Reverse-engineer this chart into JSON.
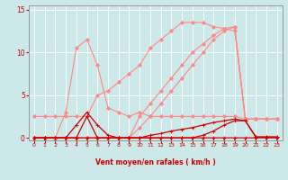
{
  "background_color": "#cce8e8",
  "grid_color": "#ffffff",
  "x_values": [
    0,
    1,
    2,
    3,
    4,
    5,
    6,
    7,
    8,
    9,
    10,
    11,
    12,
    13,
    14,
    15,
    16,
    17,
    18,
    19,
    20,
    21,
    22,
    23
  ],
  "series": [
    {
      "name": "pink_spike",
      "color": "#ff8888",
      "lw": 0.8,
      "marker": "D",
      "markersize": 2.0,
      "y": [
        0,
        0,
        0,
        3.0,
        10.5,
        11.5,
        8.5,
        3.5,
        3.0,
        2.5,
        3.0,
        2.5,
        2.5,
        2.5,
        2.5,
        2.5,
        2.5,
        2.5,
        2.5,
        2.5,
        2.2,
        2.2,
        2.2,
        2.2
      ]
    },
    {
      "name": "pink_main_curve",
      "color": "#ff8888",
      "lw": 0.8,
      "marker": "D",
      "markersize": 2.0,
      "y": [
        2.5,
        2.5,
        2.5,
        2.5,
        2.5,
        2.5,
        5.0,
        5.5,
        6.5,
        7.5,
        8.5,
        10.5,
        11.5,
        12.5,
        13.5,
        13.5,
        13.5,
        13.0,
        12.8,
        12.5,
        2.2,
        2.2,
        2.2,
        2.2
      ]
    },
    {
      "name": "pink_diagonal1",
      "color": "#ff8888",
      "lw": 0.8,
      "marker": "D",
      "markersize": 2.0,
      "y": [
        0,
        0,
        0,
        0,
        0,
        0,
        0,
        0,
        0,
        0,
        2.5,
        4.0,
        5.5,
        7.0,
        8.5,
        10.0,
        11.0,
        12.0,
        12.8,
        13.0,
        2.2,
        2.2,
        2.2,
        2.2
      ]
    },
    {
      "name": "pink_diagonal2",
      "color": "#ff8888",
      "lw": 0.8,
      "marker": "D",
      "markersize": 2.0,
      "y": [
        0,
        0,
        0,
        0,
        0,
        0,
        0,
        0,
        0,
        0,
        1.2,
        2.5,
        4.0,
        5.5,
        7.0,
        8.5,
        10.0,
        11.5,
        12.5,
        13.0,
        2.2,
        2.2,
        2.2,
        2.2
      ]
    },
    {
      "name": "dark_red_flat",
      "color": "#cc0000",
      "lw": 0.9,
      "marker": "+",
      "markersize": 3.5,
      "y": [
        0,
        0,
        0,
        0,
        0,
        0,
        0,
        0,
        0,
        0,
        0,
        0.3,
        0.5,
        0.8,
        1.0,
        1.2,
        1.5,
        1.8,
        2.0,
        2.2,
        2.0,
        0.1,
        0.1,
        0.1
      ]
    },
    {
      "name": "dark_red_spike_outer",
      "color": "#cc0000",
      "lw": 0.9,
      "marker": "+",
      "markersize": 3.5,
      "y": [
        0,
        0,
        0,
        0,
        1.5,
        3.0,
        1.5,
        0.3,
        0,
        0,
        0,
        0,
        0,
        0,
        0,
        0,
        0.3,
        0.8,
        1.5,
        2.0,
        2.0,
        0.1,
        0.1,
        0.1
      ]
    },
    {
      "name": "dark_red_spike_inner",
      "color": "#cc0000",
      "lw": 0.9,
      "marker": "+",
      "markersize": 3.5,
      "y": [
        0,
        0,
        0,
        0,
        0,
        2.5,
        0,
        0,
        0,
        0,
        0,
        0,
        0,
        0,
        0,
        0,
        0,
        0,
        0,
        0,
        0,
        0,
        0,
        0
      ]
    }
  ],
  "ylim": [
    -0.3,
    15.5
  ],
  "xlim": [
    -0.5,
    23.5
  ],
  "yticks": [
    0,
    5,
    10,
    15
  ],
  "xticks": [
    0,
    1,
    2,
    3,
    4,
    5,
    6,
    7,
    8,
    9,
    10,
    11,
    12,
    13,
    14,
    15,
    16,
    17,
    18,
    19,
    20,
    21,
    22,
    23
  ],
  "xlabel": "Vent moyen/en rafales ( km/h )",
  "xlabel_color": "#cc0000",
  "tick_color": "#cc0000",
  "axis_color": "#999999",
  "figsize": [
    3.2,
    2.0
  ],
  "dpi": 100
}
